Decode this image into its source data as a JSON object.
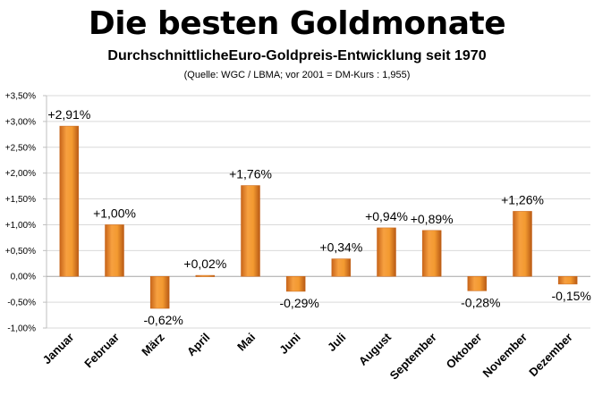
{
  "chart_data": {
    "type": "bar",
    "title": "Die besten Goldmonate",
    "subtitle": "DurchschnittlicheEuro-Goldpreis-Entwicklung seit 1970",
    "source": "(Quelle: WGC / LBMA; vor 2001 = DM-Kurs : 1,955)",
    "xlabel": "",
    "ylabel": "",
    "categories": [
      "Januar",
      "Februar",
      "März",
      "April",
      "Mai",
      "Juni",
      "Juli",
      "August",
      "September",
      "Oktober",
      "November",
      "Dezember"
    ],
    "values": [
      2.91,
      1.0,
      -0.62,
      0.02,
      1.76,
      -0.29,
      0.34,
      0.94,
      0.89,
      -0.28,
      1.26,
      -0.15
    ],
    "data_labels": [
      "+2,91%",
      "+1,00%",
      "-0,62%",
      "+0,02%",
      "+1,76%",
      "-0,29%",
      "+0,34%",
      "+0,94%",
      "+0,89%",
      "-0,28%",
      "+1,26%",
      "-0,15%"
    ],
    "ylim": [
      -1.0,
      3.5
    ],
    "y_ticks": [
      3.5,
      3.0,
      2.5,
      2.0,
      1.5,
      1.0,
      0.5,
      0.0,
      -0.5,
      -1.0
    ],
    "y_tick_labels": [
      "+3,50%",
      "+3,00%",
      "+2,50%",
      "+2,00%",
      "+1,50%",
      "+1,00%",
      "+0,50%",
      "0,00%",
      "-0,50%",
      "-1,00%"
    ],
    "grid": true,
    "legend": "none",
    "bar_color": "#F39A30",
    "bar_dark": "#C8651A"
  }
}
